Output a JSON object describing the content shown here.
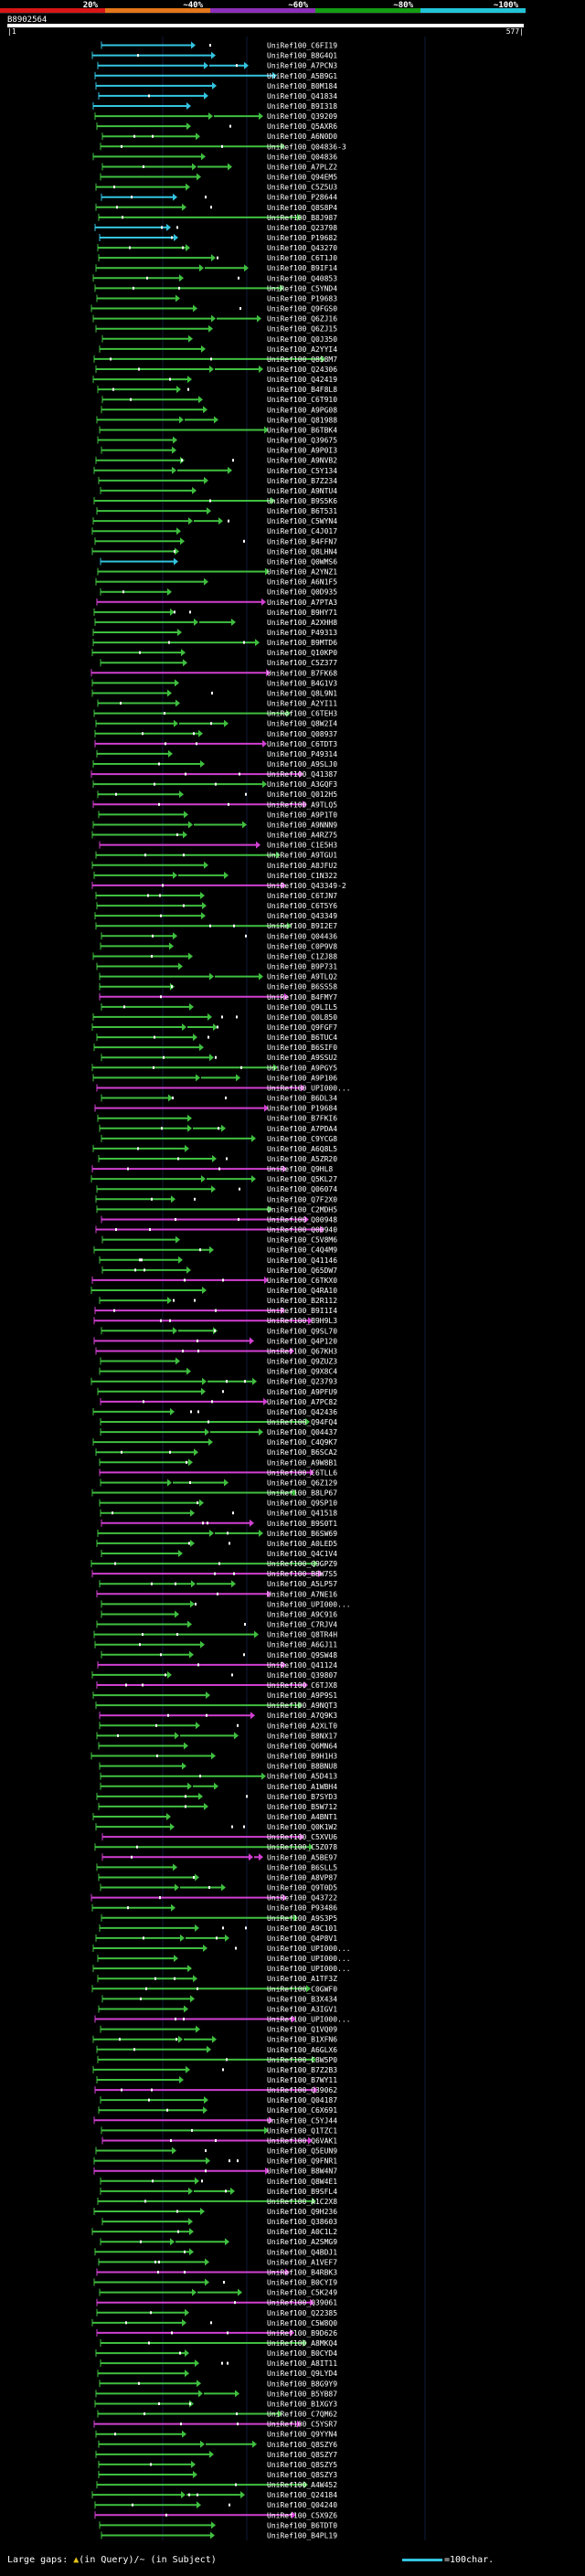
{
  "header": {
    "percent_labels": [
      "20%",
      "~40%",
      "~60%",
      "~80%",
      "~100%"
    ],
    "band_colors": [
      "#d81616",
      "#e5761a",
      "#8e2fb8",
      "#149c14",
      "#22c4d8"
    ],
    "query_id": "B8902564",
    "start_pos": "1",
    "end_pos": "577"
  },
  "legend": {
    "left_text": "Large gaps: ",
    "left_symbol": "▲",
    "left_rest": "(in Query)/~ (in Subject)",
    "right_text": "=100char."
  },
  "colors": {
    "cyan": "#33c4e0",
    "green": "#3fbf3f",
    "magenta": "#d13fd1",
    "dots": "#ffffff",
    "query_mark": "#e6c31a",
    "label": "#ffffff"
  },
  "rows": [
    {
      "label": "UniRef100_C6FI19",
      "color": "cyan"
    },
    {
      "label": "UniRef100_B8G4Q1",
      "color": "cyan"
    },
    {
      "label": "UniRef100_A7PCN3",
      "color": "cyan"
    },
    {
      "label": "UniRef100_A5B9G1",
      "color": "cyan"
    },
    {
      "label": "UniRef100_B0M184",
      "color": "cyan"
    },
    {
      "label": "UniRef100_Q41834",
      "color": "cyan"
    },
    {
      "label": "UniRef100_B9I318",
      "color": "cyan"
    },
    {
      "label": "UniRef100_Q39209",
      "color": "green"
    },
    {
      "label": "UniRef100_Q5AXR6",
      "color": "green"
    },
    {
      "label": "UniRef100_A6N0D0",
      "color": "green"
    },
    {
      "label": "UniRef100_Q04836-3",
      "color": "green"
    },
    {
      "label": "UniRef100_Q04836",
      "color": "green"
    },
    {
      "label": "UniRef100_A7PLZ2",
      "color": "green"
    },
    {
      "label": "UniRef100_Q94EM5",
      "color": "green"
    },
    {
      "label": "UniRef100_C5Z5U3",
      "color": "green"
    },
    {
      "label": "UniRef100_P28644",
      "color": "cyan"
    },
    {
      "label": "UniRef100_Q8S8P4",
      "color": "green"
    },
    {
      "label": "UniRef100_B8J987",
      "color": "green"
    },
    {
      "label": "UniRef100_Q23798",
      "color": "cyan"
    },
    {
      "label": "UniRef100_P19682",
      "color": "cyan"
    },
    {
      "label": "UniRef100_Q43270",
      "color": "green"
    },
    {
      "label": "UniRef100_C6T1J0",
      "color": "green"
    },
    {
      "label": "UniRef100_B9IF14",
      "color": "green"
    },
    {
      "label": "UniRef100_Q40853",
      "color": "green"
    },
    {
      "label": "UniRef100_C5YND4",
      "color": "green"
    },
    {
      "label": "UniRef100_P19683",
      "color": "green"
    },
    {
      "label": "UniRef100_Q9FGS0",
      "color": "green"
    },
    {
      "label": "UniRef100_Q6ZJ16",
      "color": "green"
    },
    {
      "label": "UniRef100_Q6ZJ15",
      "color": "green"
    },
    {
      "label": "UniRef100_Q0J350",
      "color": "green"
    },
    {
      "label": "UniRef100_A2YYI4",
      "color": "green"
    },
    {
      "label": "UniRef100_Q8S8M7",
      "color": "green"
    },
    {
      "label": "UniRef100_Q24306",
      "color": "green"
    },
    {
      "label": "UniRef100_Q42419",
      "color": "green"
    },
    {
      "label": "UniRef100_B4F8L8",
      "color": "green"
    },
    {
      "label": "UniRef100_C6T910",
      "color": "green"
    },
    {
      "label": "UniRef100_A9PG08",
      "color": "green"
    },
    {
      "label": "UniRef100_Q81988",
      "color": "green"
    },
    {
      "label": "UniRef100_B6TBK4",
      "color": "green"
    },
    {
      "label": "UniRef100_Q39675",
      "color": "green"
    },
    {
      "label": "UniRef100_A9P0I3",
      "color": "green"
    },
    {
      "label": "UniRef100_A9NVB2",
      "color": "green"
    },
    {
      "label": "UniRef100_C5Y134",
      "color": "green"
    },
    {
      "label": "UniRef100_B7Z234",
      "color": "green"
    },
    {
      "label": "UniRef100_A9NTU4",
      "color": "green"
    },
    {
      "label": "UniRef100_B9S5K6",
      "color": "green"
    },
    {
      "label": "UniRef100_B6T531",
      "color": "green"
    },
    {
      "label": "UniRef100_C5WYN4",
      "color": "green"
    },
    {
      "label": "UniRef100_C4J017",
      "color": "green"
    },
    {
      "label": "UniRef100_B4FFN7",
      "color": "green"
    },
    {
      "label": "UniRef100_Q8LHN4",
      "color": "green"
    },
    {
      "label": "UniRef100_Q0WMS6",
      "color": "cyan"
    },
    {
      "label": "UniRef100_A2YNZ1",
      "color": "green"
    },
    {
      "label": "UniRef100_A6N1F5",
      "color": "green"
    },
    {
      "label": "UniRef100_Q0D935",
      "color": "green"
    },
    {
      "label": "UniRef100_A7PTA3",
      "color": "magenta"
    },
    {
      "label": "UniRef100_B9HY71",
      "color": "green"
    },
    {
      "label": "UniRef100_A2XHH8",
      "color": "green"
    },
    {
      "label": "UniRef100_P49313",
      "color": "green"
    },
    {
      "label": "UniRef100_B9MTD6",
      "color": "green"
    },
    {
      "label": "UniRef100_Q10KP0",
      "color": "green"
    },
    {
      "label": "UniRef100_C5Z377",
      "color": "green"
    },
    {
      "label": "UniRef100_B7FK68",
      "color": "magenta"
    },
    {
      "label": "UniRef100_B4G1V3",
      "color": "green"
    },
    {
      "label": "UniRef100_Q8L9N1",
      "color": "green"
    },
    {
      "label": "UniRef100_A2YI11",
      "color": "green"
    },
    {
      "label": "UniRef100_C6TEH3",
      "color": "green"
    },
    {
      "label": "UniRef100_Q8W2I4",
      "color": "green"
    },
    {
      "label": "UniRef100_Q08937",
      "color": "green"
    },
    {
      "label": "UniRef100_C6TDT3",
      "color": "magenta"
    },
    {
      "label": "UniRef100_P49314",
      "color": "green"
    },
    {
      "label": "UniRef100_A9SLJ0",
      "color": "green"
    },
    {
      "label": "UniRef100_Q41387",
      "color": "magenta"
    },
    {
      "label": "UniRef100_A3GQF3",
      "color": "green"
    },
    {
      "label": "UniRef100_Q012H5",
      "color": "green"
    },
    {
      "label": "UniRef100_A9TLQ5",
      "color": "magenta"
    },
    {
      "label": "UniRef100_A9P1T0",
      "color": "green"
    },
    {
      "label": "UniRef100_A9NNN9",
      "color": "green"
    },
    {
      "label": "UniRef100_A4RZ75",
      "color": "green"
    },
    {
      "label": "UniRef100_C1E5H3",
      "color": "magenta"
    },
    {
      "label": "UniRef100_A9TGU1",
      "color": "green"
    },
    {
      "label": "UniRef100_A8JFU2",
      "color": "green"
    },
    {
      "label": "UniRef100_C1N322",
      "color": "green"
    },
    {
      "label": "UniRef100_Q43349-2",
      "color": "magenta"
    },
    {
      "label": "UniRef100_C6TJN7",
      "color": "green"
    },
    {
      "label": "UniRef100_C6T5Y6",
      "color": "green"
    },
    {
      "label": "UniRef100_Q43349",
      "color": "green"
    },
    {
      "label": "UniRef100_B9I2E7",
      "color": "green"
    },
    {
      "label": "UniRef100_Q04436",
      "color": "green"
    },
    {
      "label": "UniRef100_C0P9V8",
      "color": "green"
    },
    {
      "label": "UniRef100_C1ZJ88",
      "color": "green"
    },
    {
      "label": "UniRef100_B9P731",
      "color": "green"
    },
    {
      "label": "UniRef100_A9TLQ2",
      "color": "green"
    },
    {
      "label": "UniRef100_B6SS58",
      "color": "green"
    },
    {
      "label": "UniRef100_B4FMY7",
      "color": "magenta"
    },
    {
      "label": "UniRef100_Q9LIL5",
      "color": "green"
    },
    {
      "label": "UniRef100_Q0L850",
      "color": "green"
    },
    {
      "label": "UniRef100_Q9FGF7",
      "color": "green"
    },
    {
      "label": "UniRef100_B6TUC4",
      "color": "green"
    },
    {
      "label": "UniRef100_B6SIF0",
      "color": "green"
    },
    {
      "label": "UniRef100_A9SSU2",
      "color": "green"
    },
    {
      "label": "UniRef100_A9PGY5",
      "color": "green"
    },
    {
      "label": "UniRef100_A9P106",
      "color": "green"
    },
    {
      "label": "UniRef100_UPI000...",
      "color": "magenta"
    },
    {
      "label": "UniRef100_B6DL34",
      "color": "green"
    },
    {
      "label": "UniRef100_P19684",
      "color": "magenta"
    },
    {
      "label": "UniRef100_B7FKI6",
      "color": "green"
    },
    {
      "label": "UniRef100_A7PDA4",
      "color": "green"
    },
    {
      "label": "UniRef100_C9YCG8",
      "color": "green"
    },
    {
      "label": "UniRef100_A6Q8L5",
      "color": "green"
    },
    {
      "label": "UniRef100_A5ZR20",
      "color": "green"
    },
    {
      "label": "UniRef100_Q9HL8",
      "color": "magenta"
    },
    {
      "label": "UniRef100_Q5KL27",
      "color": "green"
    },
    {
      "label": "UniRef100_Q06074",
      "color": "green"
    },
    {
      "label": "UniRef100_Q7F2X0",
      "color": "green"
    },
    {
      "label": "UniRef100_C2MDH5",
      "color": "green"
    },
    {
      "label": "UniRef100_Q00948",
      "color": "magenta"
    },
    {
      "label": "UniRef100_Q00940",
      "color": "magenta"
    },
    {
      "label": "UniRef100_C5V8M6",
      "color": "green"
    },
    {
      "label": "UniRef100_C4Q4M9",
      "color": "green"
    },
    {
      "label": "UniRef100_Q41146",
      "color": "green"
    },
    {
      "label": "UniRef100_Q65DW7",
      "color": "green"
    },
    {
      "label": "UniRef100_C6TKX0",
      "color": "magenta"
    },
    {
      "label": "UniRef100_Q4RA10",
      "color": "green"
    },
    {
      "label": "UniRef100_B2R112",
      "color": "green"
    },
    {
      "label": "UniRef100_B9I1I4",
      "color": "magenta"
    },
    {
      "label": "UniRef100_B9H9L3",
      "color": "magenta"
    },
    {
      "label": "UniRef100_Q9SL70",
      "color": "green"
    },
    {
      "label": "UniRef100_Q4P120",
      "color": "magenta"
    },
    {
      "label": "UniRef100_Q67KH3",
      "color": "magenta"
    },
    {
      "label": "UniRef100_Q9ZUZ3",
      "color": "green"
    },
    {
      "label": "UniRef100_Q9X8C4",
      "color": "green"
    },
    {
      "label": "UniRef100_Q23793",
      "color": "green"
    },
    {
      "label": "UniRef100_A9PFU9",
      "color": "green"
    },
    {
      "label": "UniRef100_A7PC82",
      "color": "magenta"
    },
    {
      "label": "UniRef100_Q42436",
      "color": "green"
    },
    {
      "label": "UniRef100_Q94FQ4",
      "color": "green"
    },
    {
      "label": "UniRef100_Q04437",
      "color": "green"
    },
    {
      "label": "UniRef100_C4Q9K7",
      "color": "green"
    },
    {
      "label": "UniRef100_B6SCA2",
      "color": "green"
    },
    {
      "label": "UniRef100_A9W8B1",
      "color": "green"
    },
    {
      "label": "UniRef100_C6TLL6",
      "color": "magenta"
    },
    {
      "label": "UniRef100_Q6Z129",
      "color": "green"
    },
    {
      "label": "UniRef100_B8LP67",
      "color": "green"
    },
    {
      "label": "UniRef100_Q9SP10",
      "color": "green"
    },
    {
      "label": "UniRef100_Q41518",
      "color": "green"
    },
    {
      "label": "UniRef100_B9S0T1",
      "color": "magenta"
    },
    {
      "label": "UniRef100_B6SW69",
      "color": "green"
    },
    {
      "label": "UniRef100_A0LED5",
      "color": "green"
    },
    {
      "label": "UniRef100_Q4C1V4",
      "color": "green"
    },
    {
      "label": "UniRef100_Q9GPZ9",
      "color": "green"
    },
    {
      "label": "UniRef100_B8W7S5",
      "color": "magenta"
    },
    {
      "label": "UniRef100_A5LP57",
      "color": "green"
    },
    {
      "label": "UniRef100_A7NE16",
      "color": "magenta"
    },
    {
      "label": "UniRef100_UPI000...",
      "color": "green"
    },
    {
      "label": "UniRef100_A9C916",
      "color": "green"
    },
    {
      "label": "UniRef100_C7RJV4",
      "color": "green"
    },
    {
      "label": "UniRef100_Q8TR4H",
      "color": "green"
    },
    {
      "label": "UniRef100_A6GJ11",
      "color": "green"
    },
    {
      "label": "UniRef100_Q9SW48",
      "color": "green"
    },
    {
      "label": "UniRef100_Q41124",
      "color": "magenta"
    },
    {
      "label": "UniRef100_Q39807",
      "color": "green"
    },
    {
      "label": "UniRef100_C6TJX8",
      "color": "magenta"
    },
    {
      "label": "UniRef100_A9P9S1",
      "color": "green"
    },
    {
      "label": "UniRef100_A9NQT3",
      "color": "green"
    },
    {
      "label": "UniRef100_A7Q9K3",
      "color": "magenta"
    },
    {
      "label": "UniRef100_A2XLT0",
      "color": "green"
    },
    {
      "label": "UniRef100_B8NX17",
      "color": "green"
    },
    {
      "label": "UniRef100_Q6MN64",
      "color": "green"
    },
    {
      "label": "UniRef100_B9H1H3",
      "color": "green"
    },
    {
      "label": "UniRef100_B8BNU8",
      "color": "green"
    },
    {
      "label": "UniRef100_A5D413",
      "color": "green"
    },
    {
      "label": "UniRef100_A1WBH4",
      "color": "green"
    },
    {
      "label": "UniRef100_B7SYD3",
      "color": "green"
    },
    {
      "label": "UniRef100_B5W712",
      "color": "green"
    },
    {
      "label": "UniRef100_A4BNT1",
      "color": "green"
    },
    {
      "label": "UniRef100_Q0K1W2",
      "color": "green"
    },
    {
      "label": "UniRef100_C5XVU6",
      "color": "magenta"
    },
    {
      "label": "UniRef100_C5Z078",
      "color": "green"
    },
    {
      "label": "UniRef100_A5BE97",
      "color": "magenta"
    },
    {
      "label": "UniRef100_B6SLL5",
      "color": "green"
    },
    {
      "label": "UniRef100_A8VP87",
      "color": "green"
    },
    {
      "label": "UniRef100_Q9T0D5",
      "color": "green"
    },
    {
      "label": "UniRef100_Q43722",
      "color": "magenta"
    },
    {
      "label": "UniRef100_P93486",
      "color": "green"
    },
    {
      "label": "UniRef100_A9S3P5",
      "color": "green"
    },
    {
      "label": "UniRef100_A9C101",
      "color": "green"
    },
    {
      "label": "UniRef100_Q4P8V1",
      "color": "green"
    },
    {
      "label": "UniRef100_UPI000...",
      "color": "green"
    },
    {
      "label": "UniRef100_UPI000...",
      "color": "green"
    },
    {
      "label": "UniRef100_UPI000...",
      "color": "green"
    },
    {
      "label": "UniRef100_A1TF3Z",
      "color": "green"
    },
    {
      "label": "UniRef100_C0GWF0",
      "color": "green"
    },
    {
      "label": "UniRef100_B3X434",
      "color": "green"
    },
    {
      "label": "UniRef100_A3IGV1",
      "color": "green"
    },
    {
      "label": "UniRef100_UPI000...",
      "color": "magenta"
    },
    {
      "label": "UniRef100_Q1VQ09",
      "color": "green"
    },
    {
      "label": "UniRef100_B1XFN6",
      "color": "green"
    },
    {
      "label": "UniRef100_A6GLX6",
      "color": "green"
    },
    {
      "label": "UniRef100_C8W5P0",
      "color": "green"
    },
    {
      "label": "UniRef100_B7Z2B3",
      "color": "green"
    },
    {
      "label": "UniRef100_B7WY11",
      "color": "green"
    },
    {
      "label": "UniRef100_Q39062",
      "color": "magenta"
    },
    {
      "label": "UniRef100_Q04187",
      "color": "green"
    },
    {
      "label": "UniRef100_C6X691",
      "color": "green"
    },
    {
      "label": "UniRef100_C5YJ44",
      "color": "magenta"
    },
    {
      "label": "UniRef100_Q1TZC1",
      "color": "green"
    },
    {
      "label": "UniRef100_Q6VAK1",
      "color": "magenta"
    },
    {
      "label": "UniRef100_Q5EUN9",
      "color": "green"
    },
    {
      "label": "UniRef100_Q9FNR1",
      "color": "green"
    },
    {
      "label": "UniRef100_B8W4N7",
      "color": "magenta"
    },
    {
      "label": "UniRef100_Q8W4E1",
      "color": "green"
    },
    {
      "label": "UniRef100_B9SFL4",
      "color": "green"
    },
    {
      "label": "UniRef100_A1C2X8",
      "color": "green"
    },
    {
      "label": "UniRef100_Q9H236",
      "color": "green"
    },
    {
      "label": "UniRef100_Q38603",
      "color": "green"
    },
    {
      "label": "UniRef100_A0C1L2",
      "color": "green"
    },
    {
      "label": "UniRef100_A2SMG9",
      "color": "green"
    },
    {
      "label": "UniRef100_Q4BDJ1",
      "color": "green"
    },
    {
      "label": "UniRef100_A1VEF7",
      "color": "green"
    },
    {
      "label": "UniRef100_B4RBK3",
      "color": "magenta"
    },
    {
      "label": "UniRef100_B0CYI9",
      "color": "green"
    },
    {
      "label": "UniRef100_C5K249",
      "color": "green"
    },
    {
      "label": "UniRef100_Q39061",
      "color": "magenta"
    },
    {
      "label": "UniRef100_Q22385",
      "color": "green"
    },
    {
      "label": "UniRef100_C5W8Q0",
      "color": "green"
    },
    {
      "label": "UniRef100_B9D626",
      "color": "magenta"
    },
    {
      "label": "UniRef100_A8MKQ4",
      "color": "green"
    },
    {
      "label": "UniRef100_B0CYD4",
      "color": "green"
    },
    {
      "label": "UniRef100_A8IT11",
      "color": "green"
    },
    {
      "label": "UniRef100_Q9LYD4",
      "color": "green"
    },
    {
      "label": "UniRef100_B8G9Y9",
      "color": "green"
    },
    {
      "label": "UniRef100_B5YB87",
      "color": "green"
    },
    {
      "label": "UniRef100_B1XGY3",
      "color": "green"
    },
    {
      "label": "UniRef100_C7QM62",
      "color": "green"
    },
    {
      "label": "UniRef100_C5YSR7",
      "color": "magenta"
    },
    {
      "label": "UniRef100_Q9YYN4",
      "color": "green"
    },
    {
      "label": "UniRef100_Q8SZY6",
      "color": "green"
    },
    {
      "label": "UniRef100_Q8SZY7",
      "color": "green"
    },
    {
      "label": "UniRef100_Q8SZY5",
      "color": "green"
    },
    {
      "label": "UniRef100_Q8SZY3",
      "color": "green"
    },
    {
      "label": "UniRef100_A4W452",
      "color": "green"
    },
    {
      "label": "UniRef100_Q24184",
      "color": "green"
    },
    {
      "label": "UniRef100_Q04240",
      "color": "green"
    },
    {
      "label": "UniRef100_C5X9Z6",
      "color": "magenta"
    },
    {
      "label": "UniRef100_B6TDT0",
      "color": "green"
    },
    {
      "label": "UniRef100_B4PL19",
      "color": "green"
    }
  ]
}
